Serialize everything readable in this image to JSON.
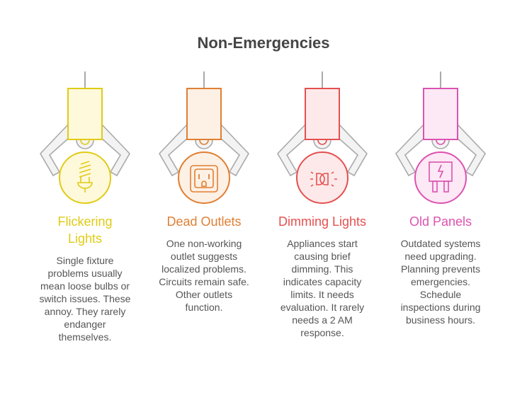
{
  "title": "Non-Emergencies",
  "columns": [
    {
      "heading": "Flickering\nLights",
      "description": "Single fixture\nproblems usually\nmean loose bulbs or\nswitch issues. These\nannoy. They rarely\nendanger\nthemselves.",
      "icon": "light-bulb-icon",
      "accent": "#e0cb15",
      "fill": "#fef9db"
    },
    {
      "heading": "Dead Outlets",
      "description": "One non-working\noutlet suggests\nlocalized problems.\nCircuits remain safe.\nOther outlets\nfunction.",
      "icon": "outlet-icon",
      "accent": "#e07f33",
      "fill": "#fdf0e4"
    },
    {
      "heading": "Dimming Lights",
      "description": "Appliances start\ncausing brief\ndimming. This\nindicates capacity\nlimits. It needs\nevaluation. It rarely\nneeds a 2 AM\nresponse.",
      "icon": "dim-light-icon",
      "accent": "#e55050",
      "fill": "#fde9e9"
    },
    {
      "heading": "Old Panels",
      "description": "Outdated systems\nneed upgrading.\nPlanning prevents\nemergencies.\nSchedule\ninspections during\nbusiness hours.",
      "icon": "electrical-panel-icon",
      "accent": "#dc52b0",
      "fill": "#fde8f5"
    }
  ]
}
